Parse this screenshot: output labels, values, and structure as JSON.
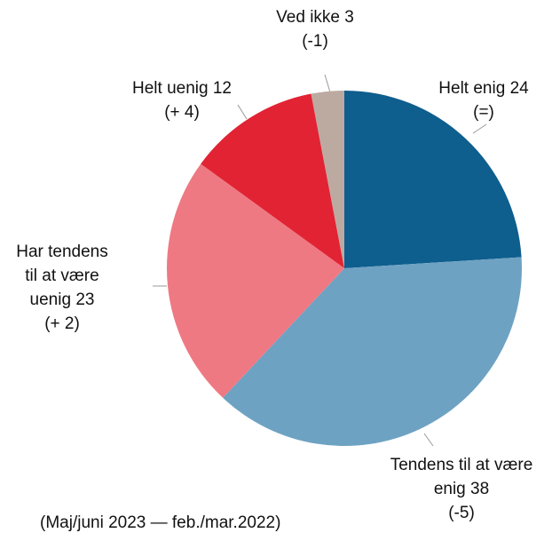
{
  "chart_data": {
    "type": "pie",
    "categories": [
      "Helt enig",
      "Tendens til at være enig",
      "Har tendens til at være uenig",
      "Helt uenig",
      "Ved ikke"
    ],
    "values": [
      24,
      38,
      23,
      12,
      3
    ],
    "changes": [
      "(=)",
      "(-5)",
      "(+ 2)",
      "(+ 4)",
      "(-1)"
    ],
    "colors": [
      "#0e5e8e",
      "#6ea2c2",
      "#ee7983",
      "#e12333",
      "#bcaaa1"
    ],
    "note": "(Maj/juni 2023 — feb./mar.2022)"
  }
}
